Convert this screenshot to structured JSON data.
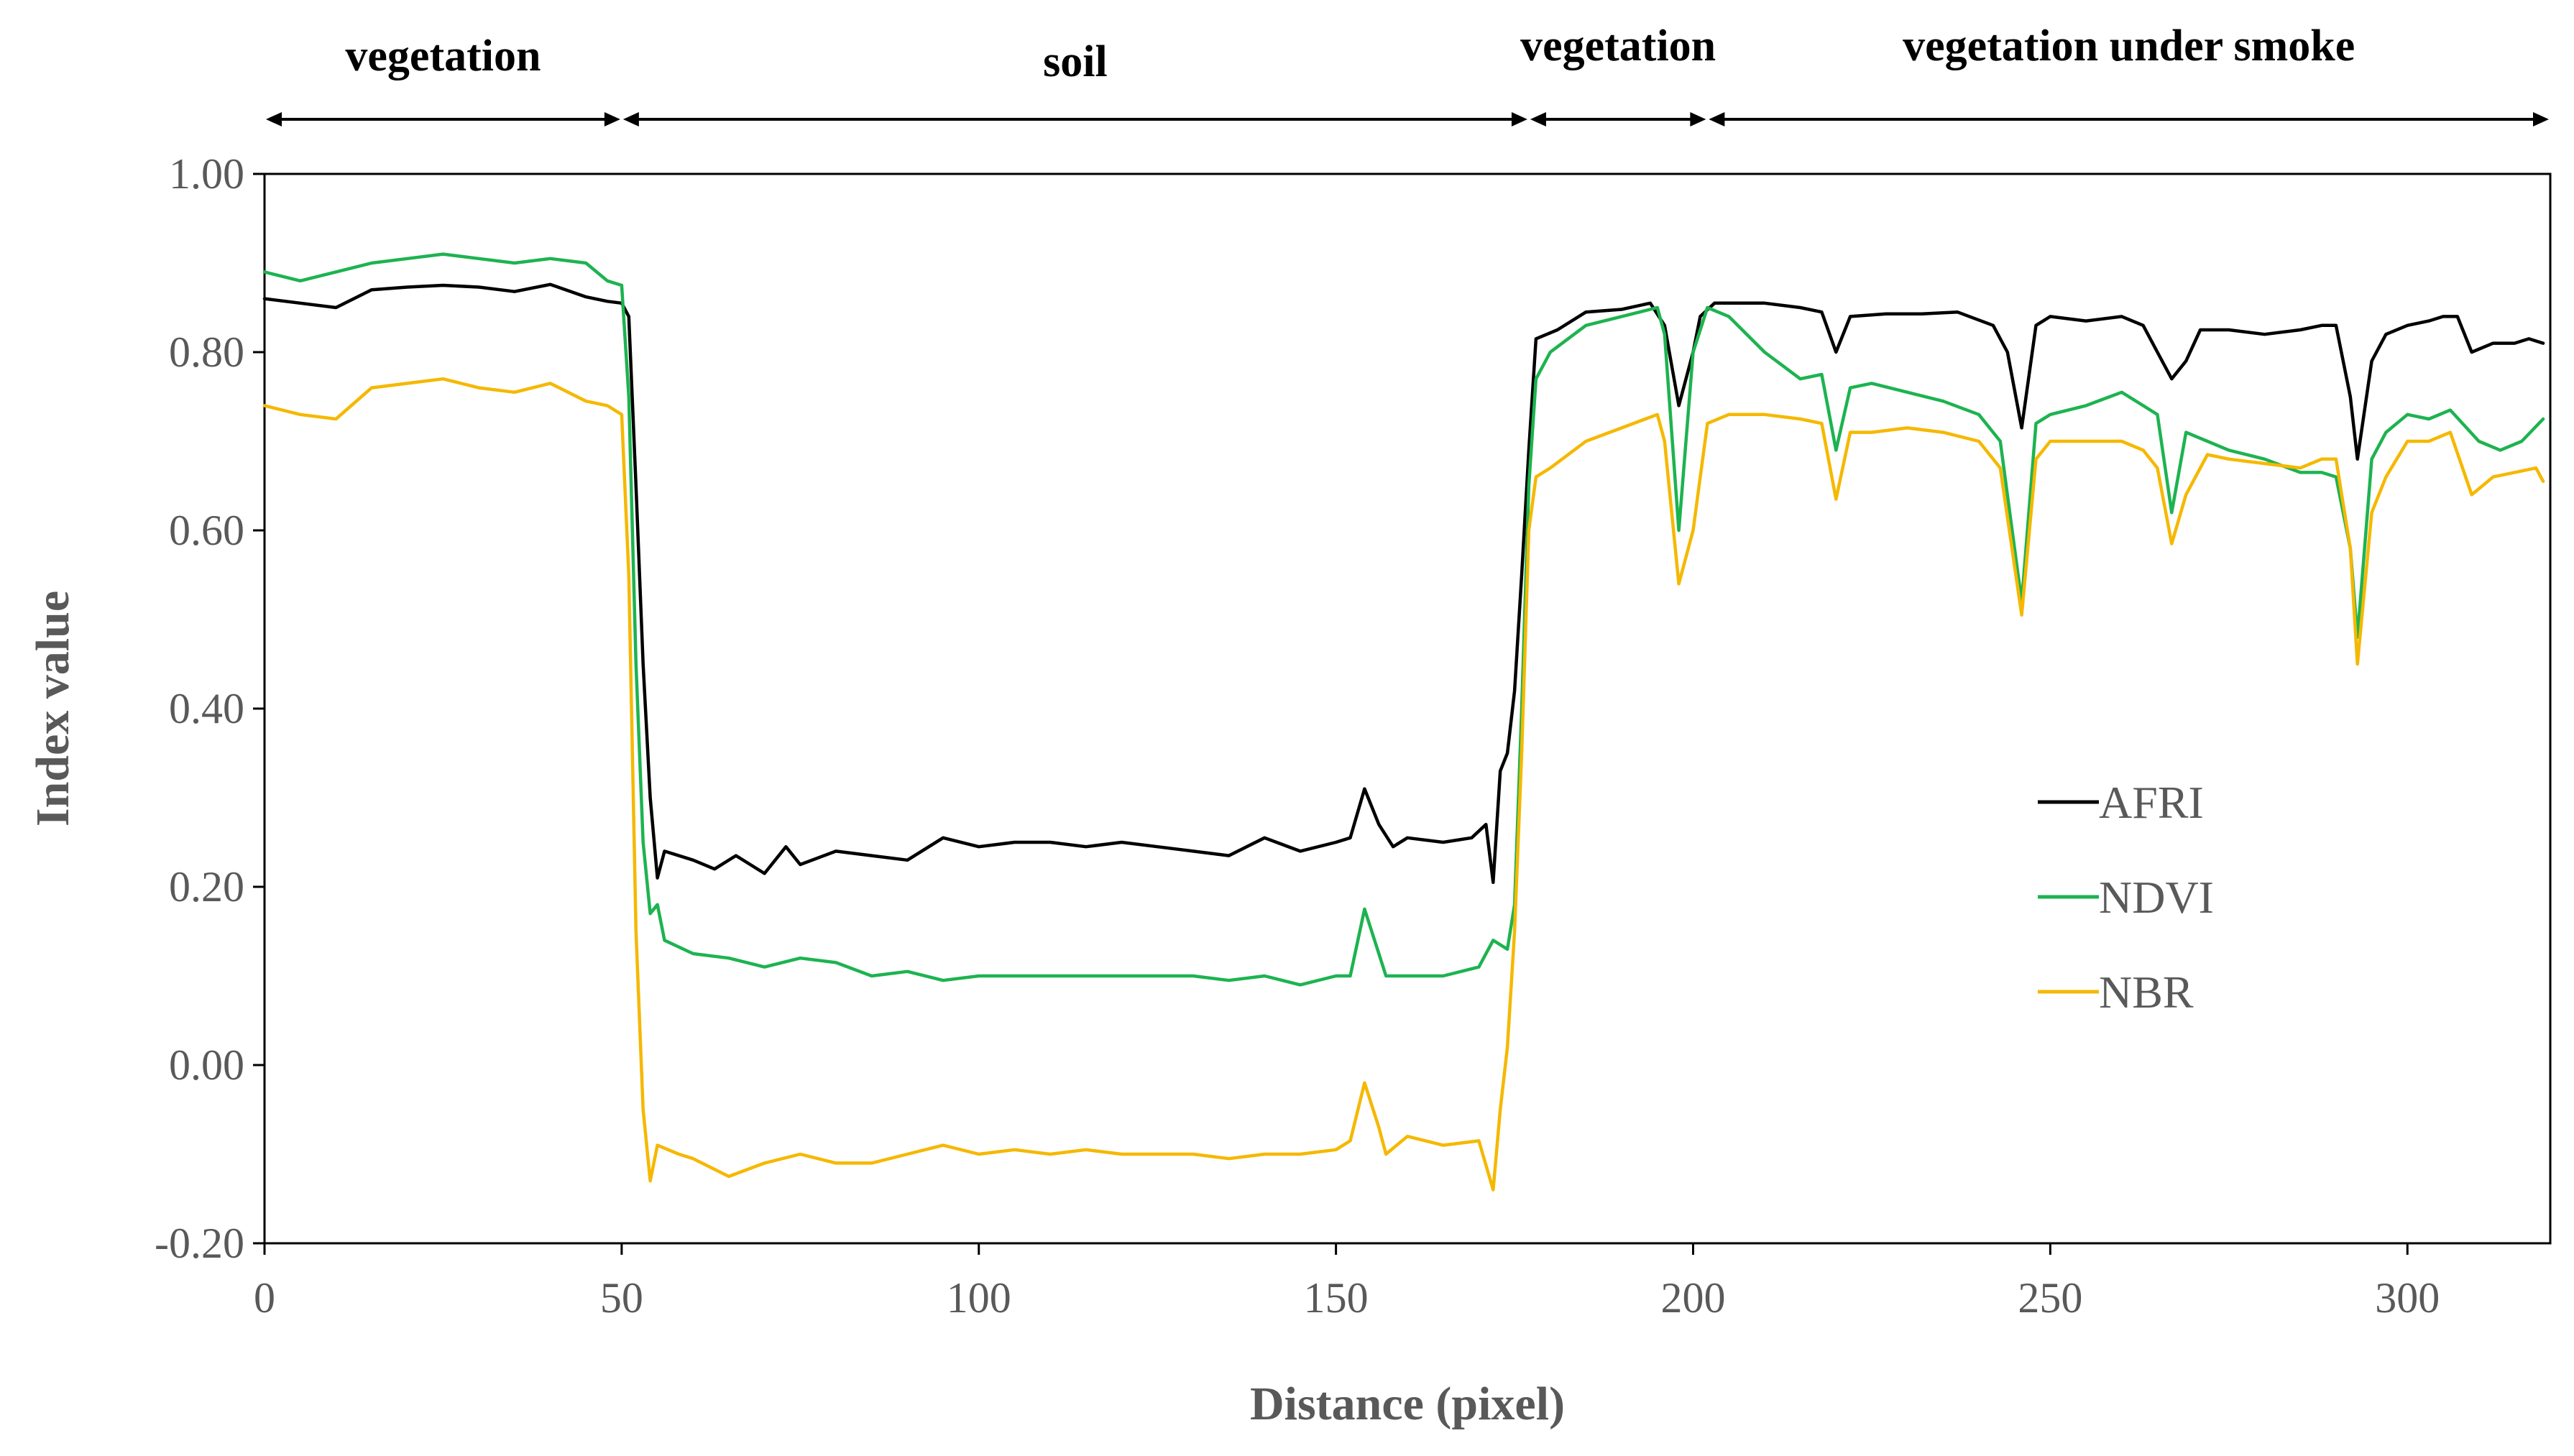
{
  "chart_data": {
    "type": "line",
    "title": "",
    "xlabel": "Distance (pixel)",
    "ylabel": "Index value",
    "xlim": [
      0,
      320
    ],
    "ylim": [
      -0.2,
      1.0
    ],
    "x_ticks": [
      0,
      50,
      100,
      150,
      200,
      250,
      300
    ],
    "x_tick_labels": [
      "0",
      "50",
      "100",
      "150",
      "200",
      "250",
      "300"
    ],
    "y_ticks": [
      -0.2,
      0.0,
      0.2,
      0.4,
      0.6,
      0.8,
      1.0
    ],
    "y_tick_labels": [
      "-0.20",
      "0.00",
      "0.20",
      "0.40",
      "0.60",
      "0.80",
      "1.00"
    ],
    "grid": false,
    "legend_position": "right-center",
    "regions": [
      {
        "label": "vegetation",
        "start": 0,
        "end": 50
      },
      {
        "label": "soil",
        "start": 50,
        "end": 177
      },
      {
        "label": "vegetation",
        "start": 177,
        "end": 202
      },
      {
        "label": "vegetation under smoke",
        "start": 202,
        "end": 320
      }
    ],
    "series": [
      {
        "name": "AFRI",
        "color": "#000000",
        "points": [
          [
            0,
            0.86
          ],
          [
            5,
            0.855
          ],
          [
            10,
            0.85
          ],
          [
            15,
            0.87
          ],
          [
            20,
            0.873
          ],
          [
            25,
            0.875
          ],
          [
            30,
            0.873
          ],
          [
            35,
            0.868
          ],
          [
            40,
            0.876
          ],
          [
            45,
            0.862
          ],
          [
            48,
            0.857
          ],
          [
            50,
            0.855
          ],
          [
            51,
            0.84
          ],
          [
            52,
            0.65
          ],
          [
            53,
            0.45
          ],
          [
            54,
            0.3
          ],
          [
            55,
            0.21
          ],
          [
            56,
            0.24
          ],
          [
            60,
            0.23
          ],
          [
            63,
            0.22
          ],
          [
            66,
            0.235
          ],
          [
            70,
            0.215
          ],
          [
            73,
            0.245
          ],
          [
            75,
            0.225
          ],
          [
            80,
            0.24
          ],
          [
            85,
            0.235
          ],
          [
            90,
            0.23
          ],
          [
            95,
            0.255
          ],
          [
            100,
            0.245
          ],
          [
            105,
            0.25
          ],
          [
            110,
            0.25
          ],
          [
            115,
            0.245
          ],
          [
            120,
            0.25
          ],
          [
            125,
            0.245
          ],
          [
            130,
            0.24
          ],
          [
            135,
            0.235
          ],
          [
            140,
            0.255
          ],
          [
            145,
            0.24
          ],
          [
            150,
            0.25
          ],
          [
            152,
            0.255
          ],
          [
            154,
            0.31
          ],
          [
            156,
            0.27
          ],
          [
            158,
            0.245
          ],
          [
            160,
            0.255
          ],
          [
            165,
            0.25
          ],
          [
            169,
            0.255
          ],
          [
            171,
            0.27
          ],
          [
            172,
            0.205
          ],
          [
            173,
            0.33
          ],
          [
            174,
            0.35
          ],
          [
            175,
            0.42
          ],
          [
            176,
            0.55
          ],
          [
            177,
            0.69
          ],
          [
            178,
            0.815
          ],
          [
            181,
            0.825
          ],
          [
            185,
            0.845
          ],
          [
            190,
            0.848
          ],
          [
            194,
            0.855
          ],
          [
            196,
            0.83
          ],
          [
            198,
            0.74
          ],
          [
            200,
            0.8
          ],
          [
            201,
            0.84
          ],
          [
            203,
            0.855
          ],
          [
            210,
            0.855
          ],
          [
            215,
            0.85
          ],
          [
            218,
            0.845
          ],
          [
            220,
            0.8
          ],
          [
            222,
            0.84
          ],
          [
            227,
            0.843
          ],
          [
            232,
            0.843
          ],
          [
            237,
            0.845
          ],
          [
            242,
            0.83
          ],
          [
            244,
            0.8
          ],
          [
            246,
            0.715
          ],
          [
            248,
            0.83
          ],
          [
            250,
            0.84
          ],
          [
            255,
            0.835
          ],
          [
            260,
            0.84
          ],
          [
            263,
            0.83
          ],
          [
            265,
            0.8
          ],
          [
            267,
            0.77
          ],
          [
            269,
            0.79
          ],
          [
            271,
            0.825
          ],
          [
            275,
            0.825
          ],
          [
            280,
            0.82
          ],
          [
            285,
            0.825
          ],
          [
            288,
            0.83
          ],
          [
            290,
            0.83
          ],
          [
            292,
            0.75
          ],
          [
            293,
            0.68
          ],
          [
            295,
            0.79
          ],
          [
            297,
            0.82
          ],
          [
            300,
            0.83
          ],
          [
            303,
            0.835
          ],
          [
            305,
            0.84
          ],
          [
            307,
            0.84
          ],
          [
            309,
            0.8
          ],
          [
            312,
            0.81
          ],
          [
            315,
            0.81
          ],
          [
            317,
            0.815
          ],
          [
            319,
            0.81
          ]
        ]
      },
      {
        "name": "NDVI",
        "color": "#1db350",
        "points": [
          [
            0,
            0.89
          ],
          [
            5,
            0.88
          ],
          [
            10,
            0.89
          ],
          [
            15,
            0.9
          ],
          [
            20,
            0.905
          ],
          [
            25,
            0.91
          ],
          [
            30,
            0.905
          ],
          [
            35,
            0.9
          ],
          [
            40,
            0.905
          ],
          [
            45,
            0.9
          ],
          [
            48,
            0.88
          ],
          [
            50,
            0.875
          ],
          [
            51,
            0.75
          ],
          [
            52,
            0.45
          ],
          [
            53,
            0.25
          ],
          [
            54,
            0.17
          ],
          [
            55,
            0.18
          ],
          [
            56,
            0.14
          ],
          [
            60,
            0.125
          ],
          [
            65,
            0.12
          ],
          [
            70,
            0.11
          ],
          [
            75,
            0.12
          ],
          [
            80,
            0.115
          ],
          [
            85,
            0.1
          ],
          [
            90,
            0.105
          ],
          [
            95,
            0.095
          ],
          [
            100,
            0.1
          ],
          [
            105,
            0.1
          ],
          [
            110,
            0.1
          ],
          [
            115,
            0.1
          ],
          [
            120,
            0.1
          ],
          [
            125,
            0.1
          ],
          [
            130,
            0.1
          ],
          [
            135,
            0.095
          ],
          [
            140,
            0.1
          ],
          [
            145,
            0.09
          ],
          [
            150,
            0.1
          ],
          [
            152,
            0.1
          ],
          [
            154,
            0.175
          ],
          [
            156,
            0.125
          ],
          [
            157,
            0.1
          ],
          [
            160,
            0.1
          ],
          [
            165,
            0.1
          ],
          [
            170,
            0.11
          ],
          [
            172,
            0.14
          ],
          [
            174,
            0.13
          ],
          [
            175,
            0.18
          ],
          [
            176,
            0.4
          ],
          [
            177,
            0.65
          ],
          [
            178,
            0.77
          ],
          [
            180,
            0.8
          ],
          [
            185,
            0.83
          ],
          [
            190,
            0.84
          ],
          [
            195,
            0.85
          ],
          [
            196,
            0.82
          ],
          [
            198,
            0.6
          ],
          [
            200,
            0.8
          ],
          [
            202,
            0.85
          ],
          [
            205,
            0.84
          ],
          [
            210,
            0.8
          ],
          [
            215,
            0.77
          ],
          [
            218,
            0.775
          ],
          [
            220,
            0.69
          ],
          [
            222,
            0.76
          ],
          [
            225,
            0.765
          ],
          [
            230,
            0.755
          ],
          [
            235,
            0.745
          ],
          [
            240,
            0.73
          ],
          [
            243,
            0.7
          ],
          [
            246,
            0.52
          ],
          [
            248,
            0.72
          ],
          [
            250,
            0.73
          ],
          [
            255,
            0.74
          ],
          [
            260,
            0.755
          ],
          [
            263,
            0.74
          ],
          [
            265,
            0.73
          ],
          [
            267,
            0.62
          ],
          [
            269,
            0.71
          ],
          [
            272,
            0.7
          ],
          [
            275,
            0.69
          ],
          [
            280,
            0.68
          ],
          [
            285,
            0.665
          ],
          [
            288,
            0.665
          ],
          [
            290,
            0.66
          ],
          [
            292,
            0.58
          ],
          [
            293,
            0.48
          ],
          [
            295,
            0.68
          ],
          [
            297,
            0.71
          ],
          [
            300,
            0.73
          ],
          [
            303,
            0.725
          ],
          [
            306,
            0.735
          ],
          [
            310,
            0.7
          ],
          [
            313,
            0.69
          ],
          [
            316,
            0.7
          ],
          [
            319,
            0.725
          ]
        ]
      },
      {
        "name": "NBR",
        "color": "#f5b800",
        "points": [
          [
            0,
            0.74
          ],
          [
            5,
            0.73
          ],
          [
            10,
            0.725
          ],
          [
            15,
            0.76
          ],
          [
            20,
            0.765
          ],
          [
            25,
            0.77
          ],
          [
            30,
            0.76
          ],
          [
            35,
            0.755
          ],
          [
            40,
            0.765
          ],
          [
            45,
            0.745
          ],
          [
            48,
            0.74
          ],
          [
            50,
            0.73
          ],
          [
            51,
            0.55
          ],
          [
            52,
            0.15
          ],
          [
            53,
            -0.05
          ],
          [
            54,
            -0.13
          ],
          [
            55,
            -0.09
          ],
          [
            58,
            -0.1
          ],
          [
            60,
            -0.105
          ],
          [
            65,
            -0.125
          ],
          [
            70,
            -0.11
          ],
          [
            75,
            -0.1
          ],
          [
            80,
            -0.11
          ],
          [
            85,
            -0.11
          ],
          [
            90,
            -0.1
          ],
          [
            95,
            -0.09
          ],
          [
            100,
            -0.1
          ],
          [
            105,
            -0.095
          ],
          [
            110,
            -0.1
          ],
          [
            115,
            -0.095
          ],
          [
            120,
            -0.1
          ],
          [
            125,
            -0.1
          ],
          [
            130,
            -0.1
          ],
          [
            135,
            -0.105
          ],
          [
            140,
            -0.1
          ],
          [
            145,
            -0.1
          ],
          [
            150,
            -0.095
          ],
          [
            152,
            -0.085
          ],
          [
            154,
            -0.02
          ],
          [
            156,
            -0.07
          ],
          [
            157,
            -0.1
          ],
          [
            160,
            -0.08
          ],
          [
            165,
            -0.09
          ],
          [
            170,
            -0.085
          ],
          [
            172,
            -0.14
          ],
          [
            173,
            -0.05
          ],
          [
            174,
            0.02
          ],
          [
            175,
            0.15
          ],
          [
            176,
            0.35
          ],
          [
            177,
            0.6
          ],
          [
            178,
            0.66
          ],
          [
            180,
            0.67
          ],
          [
            185,
            0.7
          ],
          [
            190,
            0.715
          ],
          [
            195,
            0.73
          ],
          [
            196,
            0.7
          ],
          [
            198,
            0.54
          ],
          [
            200,
            0.6
          ],
          [
            202,
            0.72
          ],
          [
            205,
            0.73
          ],
          [
            210,
            0.73
          ],
          [
            215,
            0.725
          ],
          [
            218,
            0.72
          ],
          [
            220,
            0.635
          ],
          [
            222,
            0.71
          ],
          [
            225,
            0.71
          ],
          [
            230,
            0.715
          ],
          [
            235,
            0.71
          ],
          [
            240,
            0.7
          ],
          [
            243,
            0.67
          ],
          [
            246,
            0.505
          ],
          [
            248,
            0.68
          ],
          [
            250,
            0.7
          ],
          [
            255,
            0.7
          ],
          [
            260,
            0.7
          ],
          [
            263,
            0.69
          ],
          [
            265,
            0.67
          ],
          [
            267,
            0.585
          ],
          [
            269,
            0.64
          ],
          [
            272,
            0.685
          ],
          [
            275,
            0.68
          ],
          [
            280,
            0.675
          ],
          [
            285,
            0.67
          ],
          [
            288,
            0.68
          ],
          [
            290,
            0.68
          ],
          [
            292,
            0.58
          ],
          [
            293,
            0.45
          ],
          [
            295,
            0.62
          ],
          [
            297,
            0.66
          ],
          [
            300,
            0.7
          ],
          [
            303,
            0.7
          ],
          [
            306,
            0.71
          ],
          [
            309,
            0.64
          ],
          [
            312,
            0.66
          ],
          [
            315,
            0.665
          ],
          [
            318,
            0.67
          ],
          [
            319,
            0.655
          ]
        ]
      }
    ]
  }
}
